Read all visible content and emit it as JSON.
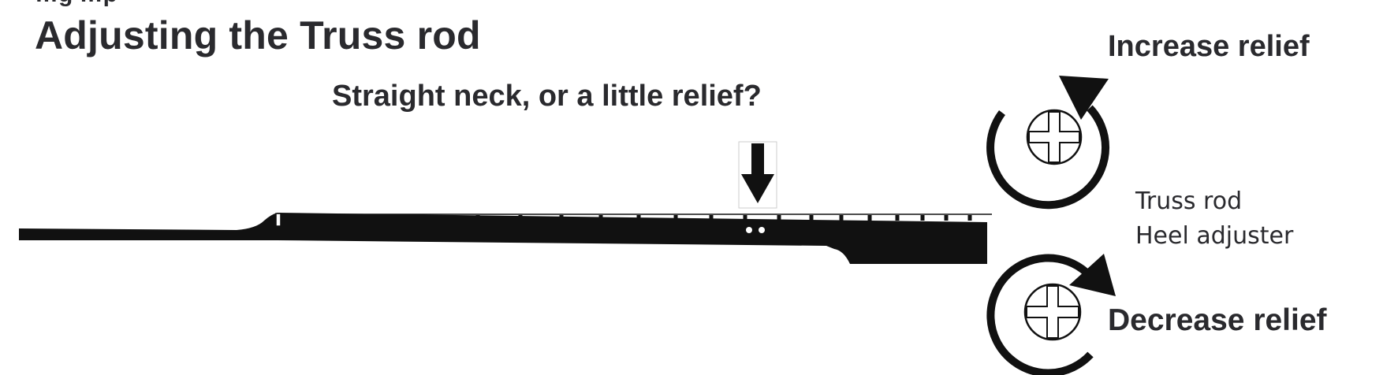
{
  "header": {
    "cut_off_text": "…g  …p",
    "title": "Adjusting the Truss rod"
  },
  "question": "Straight neck, or a little relief?",
  "adjuster": {
    "increase_label": "Increase relief",
    "decrease_label": "Decrease relief",
    "name_line1": "Truss rod",
    "name_line2": "Heel adjuster"
  },
  "colors": {
    "ink": "#111111",
    "text": "#2a2a2e"
  },
  "icons": {
    "arrow": "down-arrow-icon",
    "increase": "counterclockwise-rotation-icon",
    "decrease": "clockwise-rotation-icon",
    "screw": "cross-slot-screw-icon"
  }
}
